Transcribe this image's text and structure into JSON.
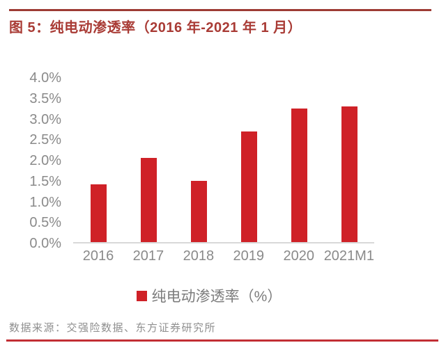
{
  "header": {
    "title": "图 5：纯电动渗透率（2016 年-2021 年 1 月）"
  },
  "chart_data": {
    "type": "bar",
    "title": "纯电动渗透率（2016 年-2021 年 1 月）",
    "categories": [
      "2016",
      "2017",
      "2018",
      "2019",
      "2020",
      "2021M1"
    ],
    "values": [
      1.4,
      2.05,
      1.5,
      2.7,
      3.25,
      3.3
    ],
    "unit": "%",
    "xlabel": "",
    "ylabel": "",
    "ylim": [
      0,
      4
    ],
    "ytick_step": 0.5,
    "yticks": [
      "0.0%",
      "0.5%",
      "1.0%",
      "1.5%",
      "2.0%",
      "2.5%",
      "3.0%",
      "3.5%",
      "4.0%"
    ],
    "grid": false,
    "legend": "纯电动渗透率（%）",
    "legend_position": "bottom",
    "bar_color": "#CF2127"
  },
  "footer": {
    "source": "数据来源：交强险数据、东方证券研究所"
  },
  "colors": {
    "bar": "#CF2127",
    "title": "#A93B35",
    "rule_top": "#9D3A34",
    "rule_bottom": "#C22E34",
    "axis_text": "#8A8A8A",
    "footer_text": "#8F8F8F",
    "axis_line": "#D8D8D8",
    "background": "#FFFFFF"
  }
}
